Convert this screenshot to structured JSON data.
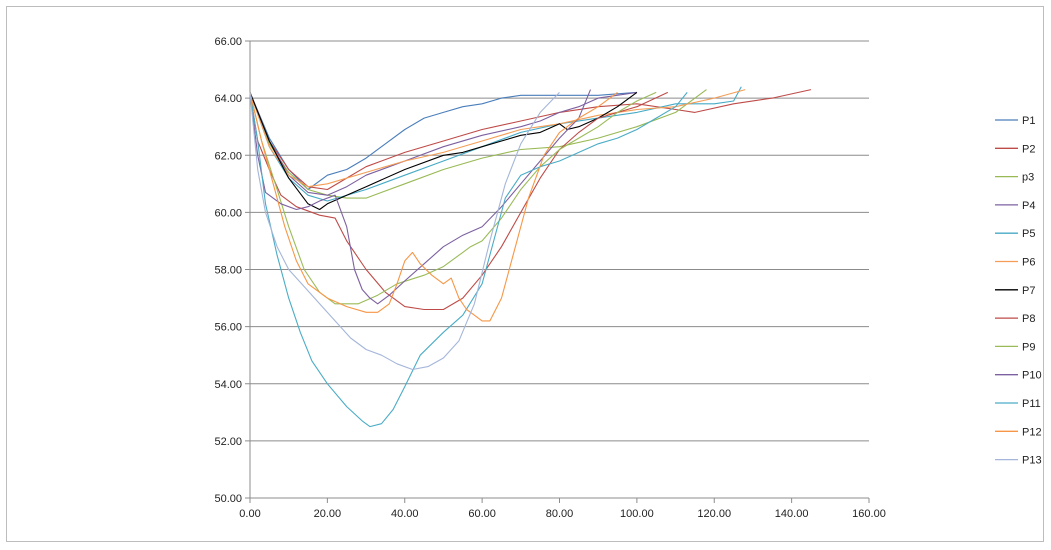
{
  "chart_data": {
    "type": "line",
    "title": "",
    "xlabel": "",
    "ylabel": "",
    "xlim": [
      0,
      160
    ],
    "ylim": [
      50,
      66
    ],
    "x_ticks": [
      "0.00",
      "20.00",
      "40.00",
      "60.00",
      "80.00",
      "100.00",
      "120.00",
      "140.00",
      "160.00"
    ],
    "y_ticks": [
      "50.00",
      "52.00",
      "54.00",
      "56.00",
      "58.00",
      "60.00",
      "62.00",
      "64.00",
      "66.00"
    ],
    "grid": "horizontal",
    "legend": "right",
    "series": [
      {
        "name": "P1",
        "color": "#4a7ebb",
        "points": [
          [
            0,
            64.2
          ],
          [
            5,
            62.6
          ],
          [
            10,
            61.5
          ],
          [
            15,
            60.8
          ],
          [
            20,
            61.3
          ],
          [
            25,
            61.5
          ],
          [
            30,
            61.9
          ],
          [
            35,
            62.4
          ],
          [
            40,
            62.9
          ],
          [
            45,
            63.3
          ],
          [
            50,
            63.5
          ],
          [
            55,
            63.7
          ],
          [
            60,
            63.8
          ],
          [
            65,
            64.0
          ],
          [
            70,
            64.1
          ],
          [
            80,
            64.1
          ],
          [
            90,
            64.1
          ],
          [
            100,
            64.2
          ]
        ]
      },
      {
        "name": "P2",
        "color": "#be4b48",
        "points": [
          [
            0,
            64.2
          ],
          [
            5,
            62.5
          ],
          [
            10,
            61.5
          ],
          [
            15,
            60.9
          ],
          [
            20,
            60.8
          ],
          [
            25,
            61.2
          ],
          [
            30,
            61.6
          ],
          [
            40,
            62.1
          ],
          [
            50,
            62.5
          ],
          [
            60,
            62.9
          ],
          [
            70,
            63.2
          ],
          [
            80,
            63.5
          ],
          [
            90,
            63.7
          ],
          [
            100,
            63.8
          ],
          [
            110,
            63.6
          ],
          [
            115,
            63.5
          ],
          [
            125,
            63.8
          ],
          [
            135,
            64.0
          ],
          [
            145,
            64.3
          ]
        ]
      },
      {
        "name": "p3",
        "color": "#98b954",
        "points": [
          [
            0,
            64.2
          ],
          [
            5,
            62.4
          ],
          [
            10,
            61.4
          ],
          [
            15,
            60.8
          ],
          [
            20,
            60.6
          ],
          [
            25,
            60.5
          ],
          [
            30,
            60.5
          ],
          [
            40,
            61.0
          ],
          [
            50,
            61.5
          ],
          [
            60,
            61.9
          ],
          [
            70,
            62.2
          ],
          [
            80,
            62.3
          ],
          [
            90,
            62.6
          ],
          [
            100,
            63.0
          ],
          [
            110,
            63.5
          ],
          [
            118,
            64.3
          ]
        ]
      },
      {
        "name": "P4",
        "color": "#7d60a0",
        "points": [
          [
            0,
            64.2
          ],
          [
            5,
            62.5
          ],
          [
            10,
            61.3
          ],
          [
            15,
            60.7
          ],
          [
            20,
            60.6
          ],
          [
            25,
            60.9
          ],
          [
            30,
            61.3
          ],
          [
            40,
            61.8
          ],
          [
            50,
            62.3
          ],
          [
            60,
            62.7
          ],
          [
            70,
            63.0
          ],
          [
            75,
            63.2
          ],
          [
            80,
            63.5
          ],
          [
            85,
            63.7
          ],
          [
            90,
            64.0
          ],
          [
            100,
            64.2
          ]
        ]
      },
      {
        "name": "P5",
        "color": "#46aac5",
        "points": [
          [
            0,
            64.2
          ],
          [
            5,
            62.3
          ],
          [
            10,
            61.2
          ],
          [
            15,
            60.6
          ],
          [
            20,
            60.4
          ],
          [
            30,
            60.8
          ],
          [
            40,
            61.3
          ],
          [
            50,
            61.8
          ],
          [
            60,
            62.3
          ],
          [
            70,
            62.8
          ],
          [
            80,
            63.1
          ],
          [
            90,
            63.3
          ],
          [
            100,
            63.5
          ],
          [
            110,
            63.8
          ],
          [
            120,
            63.8
          ],
          [
            125,
            63.9
          ],
          [
            127,
            64.4
          ]
        ]
      },
      {
        "name": "P6",
        "color": "#f59d56",
        "points": [
          [
            0,
            64.2
          ],
          [
            5,
            62.3
          ],
          [
            10,
            61.3
          ],
          [
            15,
            60.9
          ],
          [
            20,
            61.0
          ],
          [
            30,
            61.4
          ],
          [
            40,
            61.8
          ],
          [
            50,
            62.1
          ],
          [
            60,
            62.5
          ],
          [
            70,
            62.9
          ],
          [
            80,
            63.1
          ],
          [
            90,
            63.4
          ],
          [
            100,
            63.6
          ],
          [
            110,
            63.7
          ],
          [
            120,
            64.0
          ],
          [
            128,
            64.3
          ]
        ]
      },
      {
        "name": "P7",
        "color": "#000000",
        "points": [
          [
            0,
            64.2
          ],
          [
            5,
            62.5
          ],
          [
            10,
            61.2
          ],
          [
            15,
            60.3
          ],
          [
            18,
            60.1
          ],
          [
            20,
            60.3
          ],
          [
            25,
            60.6
          ],
          [
            30,
            60.9
          ],
          [
            40,
            61.5
          ],
          [
            50,
            62.0
          ],
          [
            55,
            62.1
          ],
          [
            60,
            62.3
          ],
          [
            65,
            62.5
          ],
          [
            70,
            62.7
          ],
          [
            75,
            62.8
          ],
          [
            80,
            63.1
          ],
          [
            82,
            62.9
          ],
          [
            85,
            63.0
          ],
          [
            90,
            63.3
          ],
          [
            95,
            63.7
          ],
          [
            100,
            64.2
          ]
        ]
      },
      {
        "name": "P8",
        "color": "#be4b48",
        "points": [
          [
            0,
            64.2
          ],
          [
            2,
            62.5
          ],
          [
            5,
            61.5
          ],
          [
            8,
            60.6
          ],
          [
            12,
            60.2
          ],
          [
            18,
            59.9
          ],
          [
            22,
            59.8
          ],
          [
            25,
            59.0
          ],
          [
            30,
            58.0
          ],
          [
            35,
            57.2
          ],
          [
            40,
            56.7
          ],
          [
            45,
            56.6
          ],
          [
            50,
            56.6
          ],
          [
            55,
            57.0
          ],
          [
            60,
            57.8
          ],
          [
            65,
            58.8
          ],
          [
            70,
            60.0
          ],
          [
            75,
            61.2
          ],
          [
            80,
            62.2
          ],
          [
            85,
            62.8
          ],
          [
            90,
            63.3
          ],
          [
            100,
            63.7
          ],
          [
            108,
            64.2
          ]
        ]
      },
      {
        "name": "P9",
        "color": "#9bbb59",
        "points": [
          [
            0,
            64.2
          ],
          [
            3,
            62.5
          ],
          [
            7,
            60.8
          ],
          [
            10,
            59.5
          ],
          [
            14,
            58.0
          ],
          [
            18,
            57.2
          ],
          [
            22,
            56.8
          ],
          [
            28,
            56.8
          ],
          [
            33,
            57.1
          ],
          [
            38,
            57.5
          ],
          [
            45,
            57.8
          ],
          [
            50,
            58.1
          ],
          [
            55,
            58.6
          ],
          [
            57,
            58.8
          ],
          [
            60,
            59.0
          ],
          [
            65,
            59.8
          ],
          [
            70,
            60.8
          ],
          [
            75,
            61.6
          ],
          [
            80,
            62.2
          ],
          [
            85,
            62.6
          ],
          [
            90,
            63.0
          ],
          [
            95,
            63.5
          ],
          [
            100,
            63.9
          ],
          [
            105,
            64.2
          ]
        ]
      },
      {
        "name": "P10",
        "color": "#7d60a0",
        "points": [
          [
            0,
            64.2
          ],
          [
            2,
            62.0
          ],
          [
            4,
            60.7
          ],
          [
            8,
            60.3
          ],
          [
            12,
            60.1
          ],
          [
            15,
            60.2
          ],
          [
            18,
            60.4
          ],
          [
            22,
            60.6
          ],
          [
            25,
            59.5
          ],
          [
            27,
            58.0
          ],
          [
            29,
            57.3
          ],
          [
            31,
            57.0
          ],
          [
            33,
            56.8
          ],
          [
            36,
            57.1
          ],
          [
            40,
            57.6
          ],
          [
            45,
            58.2
          ],
          [
            50,
            58.8
          ],
          [
            55,
            59.2
          ],
          [
            60,
            59.5
          ],
          [
            65,
            60.2
          ],
          [
            70,
            61.0
          ],
          [
            75,
            61.8
          ],
          [
            80,
            62.6
          ],
          [
            85,
            63.3
          ],
          [
            88,
            64.3
          ]
        ]
      },
      {
        "name": "P11",
        "color": "#4bacc6",
        "points": [
          [
            0,
            64.2
          ],
          [
            2,
            62.5
          ],
          [
            4,
            60.3
          ],
          [
            7,
            58.5
          ],
          [
            10,
            57.0
          ],
          [
            13,
            55.8
          ],
          [
            16,
            54.8
          ],
          [
            20,
            54.0
          ],
          [
            25,
            53.2
          ],
          [
            29,
            52.7
          ],
          [
            31,
            52.5
          ],
          [
            34,
            52.6
          ],
          [
            37,
            53.1
          ],
          [
            40,
            53.9
          ],
          [
            44,
            55.0
          ],
          [
            50,
            55.8
          ],
          [
            55,
            56.4
          ],
          [
            60,
            57.5
          ],
          [
            63,
            59.0
          ],
          [
            66,
            60.5
          ],
          [
            70,
            61.3
          ],
          [
            75,
            61.6
          ],
          [
            80,
            61.8
          ],
          [
            85,
            62.1
          ],
          [
            90,
            62.4
          ],
          [
            95,
            62.6
          ],
          [
            100,
            62.9
          ],
          [
            105,
            63.3
          ],
          [
            110,
            63.7
          ],
          [
            113,
            64.2
          ]
        ]
      },
      {
        "name": "P12",
        "color": "#f79646",
        "points": [
          [
            0,
            64.2
          ],
          [
            3,
            62.5
          ],
          [
            6,
            61.0
          ],
          [
            9,
            59.5
          ],
          [
            12,
            58.3
          ],
          [
            15,
            57.5
          ],
          [
            20,
            57.0
          ],
          [
            25,
            56.7
          ],
          [
            30,
            56.5
          ],
          [
            33,
            56.5
          ],
          [
            36,
            56.8
          ],
          [
            38,
            57.5
          ],
          [
            40,
            58.3
          ],
          [
            42,
            58.6
          ],
          [
            44,
            58.2
          ],
          [
            47,
            57.8
          ],
          [
            50,
            57.5
          ],
          [
            52,
            57.7
          ],
          [
            54,
            57.0
          ],
          [
            56,
            56.6
          ],
          [
            58,
            56.4
          ],
          [
            60,
            56.2
          ],
          [
            62,
            56.2
          ],
          [
            65,
            57.0
          ],
          [
            68,
            58.5
          ],
          [
            72,
            60.5
          ],
          [
            76,
            62.0
          ],
          [
            80,
            62.8
          ],
          [
            85,
            63.3
          ],
          [
            90,
            63.7
          ],
          [
            95,
            64.2
          ]
        ]
      },
      {
        "name": "P13",
        "color": "#a5b6da",
        "points": [
          [
            0,
            64.2
          ],
          [
            2,
            61.5
          ],
          [
            4,
            60.0
          ],
          [
            7,
            58.8
          ],
          [
            10,
            58.0
          ],
          [
            14,
            57.4
          ],
          [
            18,
            56.8
          ],
          [
            22,
            56.2
          ],
          [
            26,
            55.6
          ],
          [
            30,
            55.2
          ],
          [
            34,
            55.0
          ],
          [
            38,
            54.7
          ],
          [
            42,
            54.5
          ],
          [
            46,
            54.6
          ],
          [
            50,
            54.9
          ],
          [
            54,
            55.5
          ],
          [
            58,
            56.8
          ],
          [
            62,
            59.0
          ],
          [
            66,
            61.0
          ],
          [
            70,
            62.4
          ],
          [
            75,
            63.5
          ],
          [
            80,
            64.2
          ]
        ]
      }
    ]
  }
}
